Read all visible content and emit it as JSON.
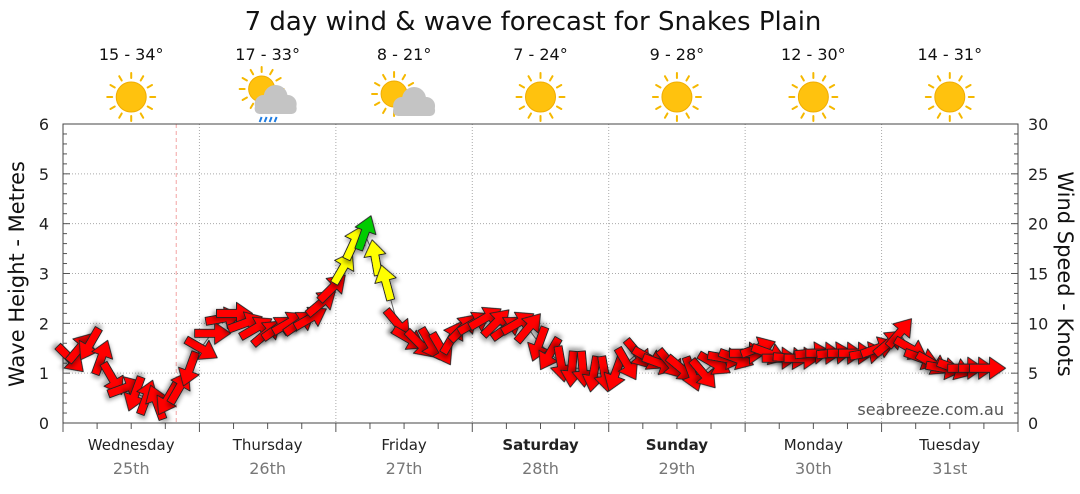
{
  "chart_data": {
    "type": "line",
    "title": "7 day wind & wave forecast for Snakes Plain",
    "ylabel_left": "Wave Height - Metres",
    "ylabel_right": "Wind Speed - Knots",
    "ylim_left": [
      0,
      6
    ],
    "ylim_right": [
      0,
      30
    ],
    "yticks_left": [
      "0",
      "1",
      "2",
      "3",
      "4",
      "5",
      "6"
    ],
    "yticks_right": [
      "0",
      "5",
      "10",
      "15",
      "20",
      "25",
      "30"
    ],
    "days": [
      {
        "name": "Wednesday",
        "date": "25th",
        "temp": "15 - 34°",
        "icon": "sun-icon",
        "weekend": false
      },
      {
        "name": "Thursday",
        "date": "26th",
        "temp": "17 - 33°",
        "icon": "rain-icon",
        "weekend": false
      },
      {
        "name": "Friday",
        "date": "27th",
        "temp": "8 - 21°",
        "icon": "cloud-sun-icon",
        "weekend": false
      },
      {
        "name": "Saturday",
        "date": "28th",
        "temp": "7 - 24°",
        "icon": "sun-icon",
        "weekend": true
      },
      {
        "name": "Sunday",
        "date": "29th",
        "temp": "9 - 28°",
        "icon": "sun-icon",
        "weekend": true
      },
      {
        "name": "Monday",
        "date": "30th",
        "temp": "12 - 30°",
        "icon": "sun-icon",
        "weekend": false
      },
      {
        "name": "Tuesday",
        "date": "31st",
        "temp": "14 - 31°",
        "icon": "sun-icon",
        "weekend": false
      }
    ],
    "wind_series_knots": [
      {
        "day": 0.05,
        "speed": 6.5,
        "dir": 315
      },
      {
        "day": 0.12,
        "speed": 7.5,
        "dir": 220
      },
      {
        "day": 0.2,
        "speed": 8,
        "dir": 30
      },
      {
        "day": 0.28,
        "speed": 6.5,
        "dir": 200
      },
      {
        "day": 0.36,
        "speed": 4.5,
        "dir": 330
      },
      {
        "day": 0.45,
        "speed": 3.5,
        "dir": 250
      },
      {
        "day": 0.53,
        "speed": 3,
        "dir": 20
      },
      {
        "day": 0.61,
        "speed": 2.5,
        "dir": 200
      },
      {
        "day": 0.69,
        "speed": 2,
        "dir": 160
      },
      {
        "day": 0.77,
        "speed": 2.5,
        "dir": 30
      },
      {
        "day": 0.85,
        "speed": 3.5,
        "dir": 210
      },
      {
        "day": 0.93,
        "speed": 5.5,
        "dir": 20
      },
      {
        "day": 1.01,
        "speed": 7.5,
        "dir": 300
      },
      {
        "day": 1.09,
        "speed": 9,
        "dir": 270
      },
      {
        "day": 1.17,
        "speed": 10.5,
        "dir": 260
      },
      {
        "day": 1.25,
        "speed": 11,
        "dir": 270
      },
      {
        "day": 1.33,
        "speed": 10,
        "dir": 250
      },
      {
        "day": 1.41,
        "speed": 9.5,
        "dir": 240
      },
      {
        "day": 1.49,
        "speed": 9,
        "dir": 230
      },
      {
        "day": 1.57,
        "speed": 9.5,
        "dir": 235
      },
      {
        "day": 1.65,
        "speed": 10,
        "dir": 240
      },
      {
        "day": 1.73,
        "speed": 10,
        "dir": 235
      },
      {
        "day": 1.81,
        "speed": 10.5,
        "dir": 240
      },
      {
        "day": 1.89,
        "speed": 12,
        "dir": 230
      },
      {
        "day": 1.97,
        "speed": 13.5,
        "dir": 225
      },
      {
        "day": 2.05,
        "speed": 15.5,
        "dir": 210
      },
      {
        "day": 2.13,
        "speed": 18,
        "dir": 205
      },
      {
        "day": 2.21,
        "speed": 19,
        "dir": 200
      },
      {
        "day": 2.29,
        "speed": 16.5,
        "dir": 170
      },
      {
        "day": 2.37,
        "speed": 14,
        "dir": 165
      },
      {
        "day": 2.45,
        "speed": 10,
        "dir": 320
      },
      {
        "day": 2.53,
        "speed": 8.5,
        "dir": 300
      },
      {
        "day": 2.61,
        "speed": 8,
        "dir": 315
      },
      {
        "day": 2.69,
        "speed": 8,
        "dir": 330
      },
      {
        "day": 2.77,
        "speed": 7.5,
        "dir": 330
      },
      {
        "day": 2.85,
        "speed": 8.5,
        "dir": 210
      },
      {
        "day": 2.93,
        "speed": 9.5,
        "dir": 225
      },
      {
        "day": 3.01,
        "speed": 10,
        "dir": 240
      },
      {
        "day": 3.09,
        "speed": 10.5,
        "dir": 240
      },
      {
        "day": 3.17,
        "speed": 10,
        "dir": 225
      },
      {
        "day": 3.25,
        "speed": 9.5,
        "dir": 235
      },
      {
        "day": 3.33,
        "speed": 10,
        "dir": 240
      },
      {
        "day": 3.41,
        "speed": 9.5,
        "dir": 220
      },
      {
        "day": 3.49,
        "speed": 8,
        "dir": 20
      },
      {
        "day": 3.57,
        "speed": 7,
        "dir": 30
      },
      {
        "day": 3.65,
        "speed": 6,
        "dir": 350
      },
      {
        "day": 3.73,
        "speed": 5.5,
        "dir": 5
      },
      {
        "day": 3.81,
        "speed": 5.5,
        "dir": 355
      },
      {
        "day": 3.89,
        "speed": 5,
        "dir": 10
      },
      {
        "day": 3.97,
        "speed": 5,
        "dir": 350
      },
      {
        "day": 4.05,
        "speed": 5,
        "dir": 20
      },
      {
        "day": 4.13,
        "speed": 6,
        "dir": 330
      },
      {
        "day": 4.21,
        "speed": 7,
        "dir": 320
      },
      {
        "day": 4.29,
        "speed": 6.5,
        "dir": 300
      },
      {
        "day": 4.37,
        "speed": 6,
        "dir": 290
      },
      {
        "day": 4.45,
        "speed": 6,
        "dir": 320
      },
      {
        "day": 4.53,
        "speed": 5.5,
        "dir": 310
      },
      {
        "day": 4.61,
        "speed": 5,
        "dir": 340
      },
      {
        "day": 4.69,
        "speed": 5,
        "dir": 320
      },
      {
        "day": 4.77,
        "speed": 6,
        "dir": 300
      },
      {
        "day": 4.85,
        "speed": 6.5,
        "dir": 280
      },
      {
        "day": 4.93,
        "speed": 6.5,
        "dir": 290
      },
      {
        "day": 5.01,
        "speed": 7,
        "dir": 270
      },
      {
        "day": 5.09,
        "speed": 7.5,
        "dir": 250
      },
      {
        "day": 5.17,
        "speed": 7,
        "dir": 290
      },
      {
        "day": 5.25,
        "speed": 6.5,
        "dir": 270
      },
      {
        "day": 5.33,
        "speed": 6.5,
        "dir": 275
      },
      {
        "day": 5.41,
        "speed": 6.5,
        "dir": 270
      },
      {
        "day": 5.49,
        "speed": 7,
        "dir": 265
      },
      {
        "day": 5.57,
        "speed": 7,
        "dir": 270
      },
      {
        "day": 5.65,
        "speed": 7,
        "dir": 265
      },
      {
        "day": 5.73,
        "speed": 7,
        "dir": 270
      },
      {
        "day": 5.81,
        "speed": 7,
        "dir": 270
      },
      {
        "day": 5.89,
        "speed": 7,
        "dir": 260
      },
      {
        "day": 5.97,
        "speed": 7.5,
        "dir": 250
      },
      {
        "day": 6.05,
        "speed": 8,
        "dir": 230
      },
      {
        "day": 6.13,
        "speed": 9,
        "dir": 220
      },
      {
        "day": 6.21,
        "speed": 7.5,
        "dir": 300
      },
      {
        "day": 6.29,
        "speed": 6.5,
        "dir": 290
      },
      {
        "day": 6.37,
        "speed": 6,
        "dir": 300
      },
      {
        "day": 6.45,
        "speed": 5.5,
        "dir": 280
      },
      {
        "day": 6.53,
        "speed": 5.5,
        "dir": 290
      },
      {
        "day": 6.61,
        "speed": 5.5,
        "dir": 270
      },
      {
        "day": 6.69,
        "speed": 5.5,
        "dir": 270
      },
      {
        "day": 6.77,
        "speed": 5.5,
        "dir": 270
      }
    ],
    "speed_colors": {
      "low": "#ff0000",
      "mid": "#ffff00",
      "high": "#00cc00"
    }
  },
  "attribution": "seabreeze.com.au"
}
